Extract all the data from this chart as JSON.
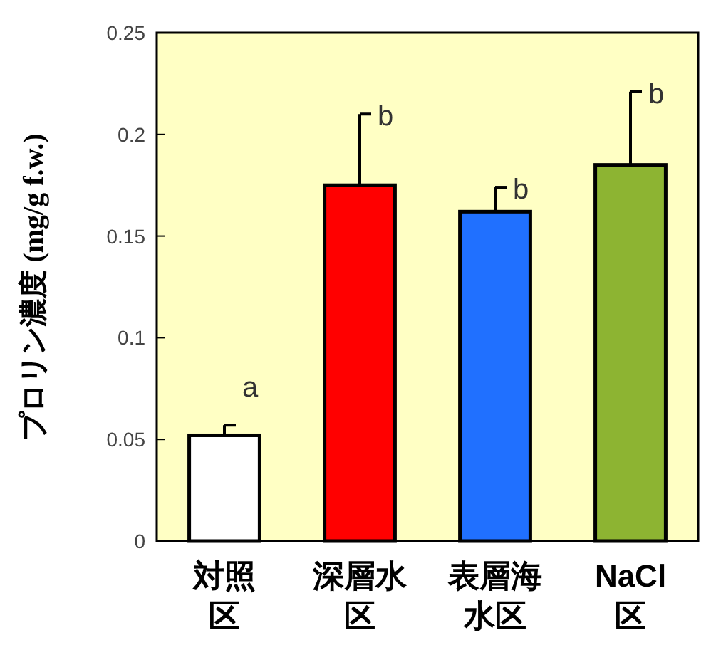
{
  "chart_data": {
    "type": "bar",
    "ylabel": "プロリン濃度 (mg/g f.w.)",
    "categories": [
      "対照区",
      "深層水区",
      "表層海水区",
      "NaCl区"
    ],
    "values": [
      0.052,
      0.175,
      0.162,
      0.185
    ],
    "colors": [
      "#ffffff",
      "#ff0000",
      "#2070ff",
      "#8db432"
    ],
    "errors": [
      [
        0.052,
        0.057
      ],
      [
        0.175,
        0.21
      ],
      [
        0.162,
        0.174
      ],
      [
        0.185,
        0.221
      ]
    ],
    "ylim": [
      0,
      0.25
    ],
    "yticks": [
      0,
      0.05,
      0.1,
      0.15,
      0.2,
      0.25
    ],
    "grid": false,
    "annotations": [
      "a",
      "b",
      "b",
      "b"
    ]
  }
}
